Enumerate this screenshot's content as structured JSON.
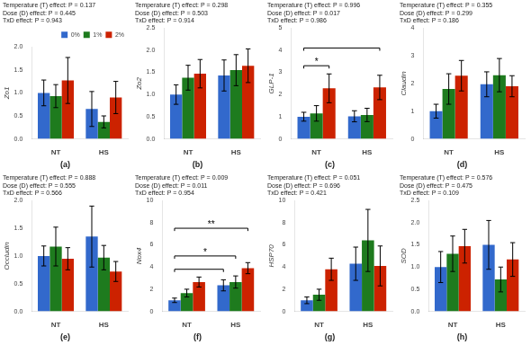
{
  "chart_data": [
    {
      "type": "bar",
      "title": "(a)",
      "subtitle": [
        "Temperature (T) effect: P = 0.137",
        "Dose (D) effect: P = 0.445",
        "TxD effect: P = 0.943"
      ],
      "ylabel": "Zo1",
      "categories": [
        "NT",
        "HS"
      ],
      "series": [
        {
          "name": "0%",
          "color": "#3269CC",
          "values": [
            1.0,
            0.65
          ],
          "errors": [
            0.28,
            0.38
          ]
        },
        {
          "name": "1%",
          "color": "#1E7B1E",
          "values": [
            0.93,
            0.37
          ],
          "errors": [
            0.25,
            0.13
          ]
        },
        {
          "name": "2%",
          "color": "#CC2200",
          "values": [
            1.27,
            0.9
          ],
          "errors": [
            0.5,
            0.35
          ]
        }
      ],
      "ylim": [
        0,
        2.0
      ],
      "yticks": [
        {
          "value": 0,
          "label": "0.0"
        },
        0.5,
        {
          "value": 1,
          "label": "1.0"
        },
        1.5,
        {
          "value": 2,
          "label": "2.0"
        }
      ],
      "grid": false,
      "legend": "upper right"
    },
    {
      "type": "bar",
      "title": "(b)",
      "subtitle": [
        "Temperature (T) effect: P = 0.298",
        "Dose (D) effect: P = 0.503",
        "TxD effect: P = 0.914"
      ],
      "ylabel": "Zo2",
      "categories": [
        "NT",
        "HS"
      ],
      "series": [
        {
          "name": "0%",
          "color": "#3269CC",
          "values": [
            1.0,
            1.43
          ],
          "errors": [
            0.22,
            0.35
          ]
        },
        {
          "name": "1%",
          "color": "#1E7B1E",
          "values": [
            1.38,
            1.55
          ],
          "errors": [
            0.28,
            0.35
          ]
        },
        {
          "name": "2%",
          "color": "#CC2200",
          "values": [
            1.47,
            1.65
          ],
          "errors": [
            0.32,
            0.38
          ]
        }
      ],
      "ylim": [
        0,
        2.5
      ],
      "yticks": [
        {
          "value": 0,
          "label": "0.0"
        },
        0.5,
        {
          "value": 1,
          "label": "1.0"
        },
        1.5,
        {
          "value": 2,
          "label": "2.0"
        },
        2.5
      ],
      "grid": false
    },
    {
      "type": "bar",
      "title": "(c)",
      "subtitle": [
        "Temperature (T) effect: P = 0.996",
        "Dose (D) effect: P = 0.017",
        "TxD effect: P = 0.986"
      ],
      "ylabel": "GLP-1",
      "categories": [
        "NT",
        "HS"
      ],
      "series": [
        {
          "name": "0%",
          "color": "#3269CC",
          "values": [
            1.0,
            1.02
          ],
          "errors": [
            0.2,
            0.25
          ]
        },
        {
          "name": "1%",
          "color": "#1E7B1E",
          "values": [
            1.15,
            1.08
          ],
          "errors": [
            0.35,
            0.3
          ]
        },
        {
          "name": "2%",
          "color": "#CC2200",
          "values": [
            2.28,
            2.32
          ],
          "errors": [
            0.65,
            0.55
          ]
        }
      ],
      "ylim": [
        0,
        5
      ],
      "yticks": [
        0,
        1,
        2,
        3,
        4,
        5
      ],
      "grid": false,
      "annotations": [
        {
          "text": "*",
          "from": [
            "NT",
            "0%"
          ],
          "to": [
            "NT",
            "2%"
          ],
          "y": 3.3
        },
        {
          "from": [
            "NT",
            "0%"
          ],
          "to": [
            "HS",
            "2%"
          ],
          "y": 4.1
        }
      ]
    },
    {
      "type": "bar",
      "title": "(d)",
      "subtitle": [
        "Temperature (T) effect: P = 0.355",
        "Dose (D) effect: P = 0.299",
        "TxD effect: P = 0.186"
      ],
      "ylabel": "Claudin",
      "categories": [
        "NT",
        "HS"
      ],
      "series": [
        {
          "name": "0%",
          "color": "#3269CC",
          "values": [
            1.0,
            1.97
          ],
          "errors": [
            0.25,
            0.45
          ]
        },
        {
          "name": "1%",
          "color": "#1E7B1E",
          "values": [
            1.8,
            2.3
          ],
          "errors": [
            0.55,
            0.6
          ]
        },
        {
          "name": "2%",
          "color": "#CC2200",
          "values": [
            2.28,
            1.9
          ],
          "errors": [
            0.55,
            0.38
          ]
        }
      ],
      "ylim": [
        0,
        4
      ],
      "yticks": [
        0,
        1,
        2,
        3,
        4
      ],
      "grid": false
    },
    {
      "type": "bar",
      "title": "(e)",
      "subtitle": [
        "Temperature (T) effect: P = 0.888",
        "Dose (D) effect: P = 0.555",
        "TxD effect: P = 0.566"
      ],
      "ylabel": "Occludin",
      "categories": [
        "NT",
        "HS"
      ],
      "series": [
        {
          "name": "0%",
          "color": "#3269CC",
          "values": [
            1.0,
            1.35
          ],
          "errors": [
            0.18,
            0.55
          ]
        },
        {
          "name": "1%",
          "color": "#1E7B1E",
          "values": [
            1.17,
            0.97
          ],
          "errors": [
            0.35,
            0.22
          ]
        },
        {
          "name": "2%",
          "color": "#CC2200",
          "values": [
            0.95,
            0.72
          ],
          "errors": [
            0.2,
            0.18
          ]
        }
      ],
      "ylim": [
        0,
        2.0
      ],
      "yticks": [
        {
          "value": 0,
          "label": "0.0"
        },
        0.5,
        {
          "value": 1,
          "label": "1.0"
        },
        1.5,
        {
          "value": 2,
          "label": "2.0"
        }
      ],
      "grid": false
    },
    {
      "type": "bar",
      "title": "(f)",
      "subtitle": [
        "Temperature (T) effect: P = 0.009",
        "Dose (D) effect: P = 0.011",
        "TxD effect: P = 0.954"
      ],
      "ylabel": "Nox4",
      "categories": [
        "NT",
        "HS"
      ],
      "series": [
        {
          "name": "0%",
          "color": "#3269CC",
          "values": [
            1.0,
            2.35
          ],
          "errors": [
            0.2,
            0.5
          ]
        },
        {
          "name": "1%",
          "color": "#1E7B1E",
          "values": [
            1.65,
            2.65
          ],
          "errors": [
            0.35,
            0.55
          ]
        },
        {
          "name": "2%",
          "color": "#CC2200",
          "values": [
            2.65,
            3.9
          ],
          "errors": [
            0.45,
            0.5
          ]
        }
      ],
      "ylim": [
        0,
        10
      ],
      "yticks": [
        0,
        2,
        4,
        6,
        8,
        10
      ],
      "grid": false,
      "annotations": [
        {
          "from": [
            "NT",
            "0%"
          ],
          "to": [
            "HS",
            "0%"
          ],
          "y": 3.8
        },
        {
          "text": "*",
          "from": [
            "NT",
            "0%"
          ],
          "to": [
            "HS",
            "1%"
          ],
          "y": 5.0
        },
        {
          "text": "**",
          "from": [
            "NT",
            "0%"
          ],
          "to": [
            "HS",
            "2%"
          ],
          "y": 7.5
        }
      ]
    },
    {
      "type": "bar",
      "title": "(g)",
      "subtitle": [
        "Temperature (T) effect: P = 0.051",
        "Dose (D) effect: P = 0.696",
        "TxD effect: P = 0.421"
      ],
      "ylabel": "HSP70",
      "categories": [
        "NT",
        "HS"
      ],
      "series": [
        {
          "name": "0%",
          "color": "#3269CC",
          "values": [
            1.0,
            4.3
          ],
          "errors": [
            0.3,
            1.5
          ]
        },
        {
          "name": "1%",
          "color": "#1E7B1E",
          "values": [
            1.5,
            6.4
          ],
          "errors": [
            0.5,
            2.8
          ]
        },
        {
          "name": "2%",
          "color": "#CC2200",
          "values": [
            3.8,
            4.1
          ],
          "errors": [
            1.0,
            1.8
          ]
        }
      ],
      "ylim": [
        0,
        10
      ],
      "yticks": [
        0,
        2,
        4,
        6,
        8,
        10
      ],
      "grid": false
    },
    {
      "type": "bar",
      "title": "(h)",
      "subtitle": [
        "Temperature (T) effect: P = 0.576",
        "Dose (D) effect: P = 0.475",
        "TxD effect: P = 0.109"
      ],
      "ylabel": "SOD",
      "categories": [
        "NT",
        "HS"
      ],
      "series": [
        {
          "name": "0%",
          "color": "#3269CC",
          "values": [
            1.0,
            1.5
          ],
          "errors": [
            0.35,
            0.55
          ]
        },
        {
          "name": "1%",
          "color": "#1E7B1E",
          "values": [
            1.3,
            0.72
          ],
          "errors": [
            0.4,
            0.28
          ]
        },
        {
          "name": "2%",
          "color": "#CC2200",
          "values": [
            1.47,
            1.17
          ],
          "errors": [
            0.38,
            0.38
          ]
        }
      ],
      "ylim": [
        0,
        2.5
      ],
      "yticks": [
        {
          "value": 0,
          "label": "0.0"
        },
        0.5,
        {
          "value": 1,
          "label": "1.0"
        },
        1.5,
        {
          "value": 2,
          "label": "2.0"
        },
        2.5
      ],
      "grid": false
    }
  ]
}
